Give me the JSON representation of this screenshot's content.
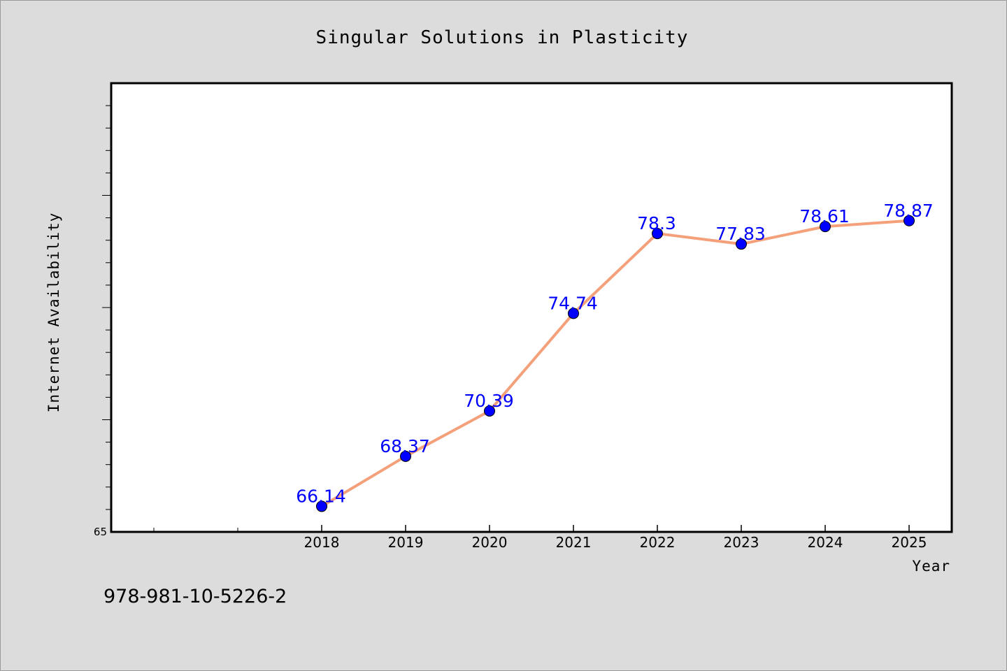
{
  "chart_data": {
    "type": "line",
    "title": "Singular Solutions in Plasticity",
    "xlabel": "Year",
    "ylabel": "Internet Availability",
    "categories": [
      "2018",
      "2019",
      "2020",
      "2021",
      "2022",
      "2023",
      "2024",
      "2025"
    ],
    "series": [
      {
        "values": [
          66.14,
          68.37,
          70.39,
          74.74,
          78.3,
          77.83,
          78.61,
          78.87
        ],
        "data_labels": [
          "66.14",
          "68.37",
          "70.39",
          "74.74",
          "78.3",
          "77.83",
          "78.61",
          "78.87"
        ]
      }
    ],
    "ylim": [
      65,
      85
    ],
    "y_tick_labels": [
      "65"
    ],
    "grid": false,
    "line_color": "#f4a07a",
    "marker_color": "#0000ff",
    "data_label_color": "#0000ff",
    "plot_background": "#ffffff",
    "figure_background": "#dcdcdc"
  },
  "footer_text": "978-981-10-5226-2"
}
